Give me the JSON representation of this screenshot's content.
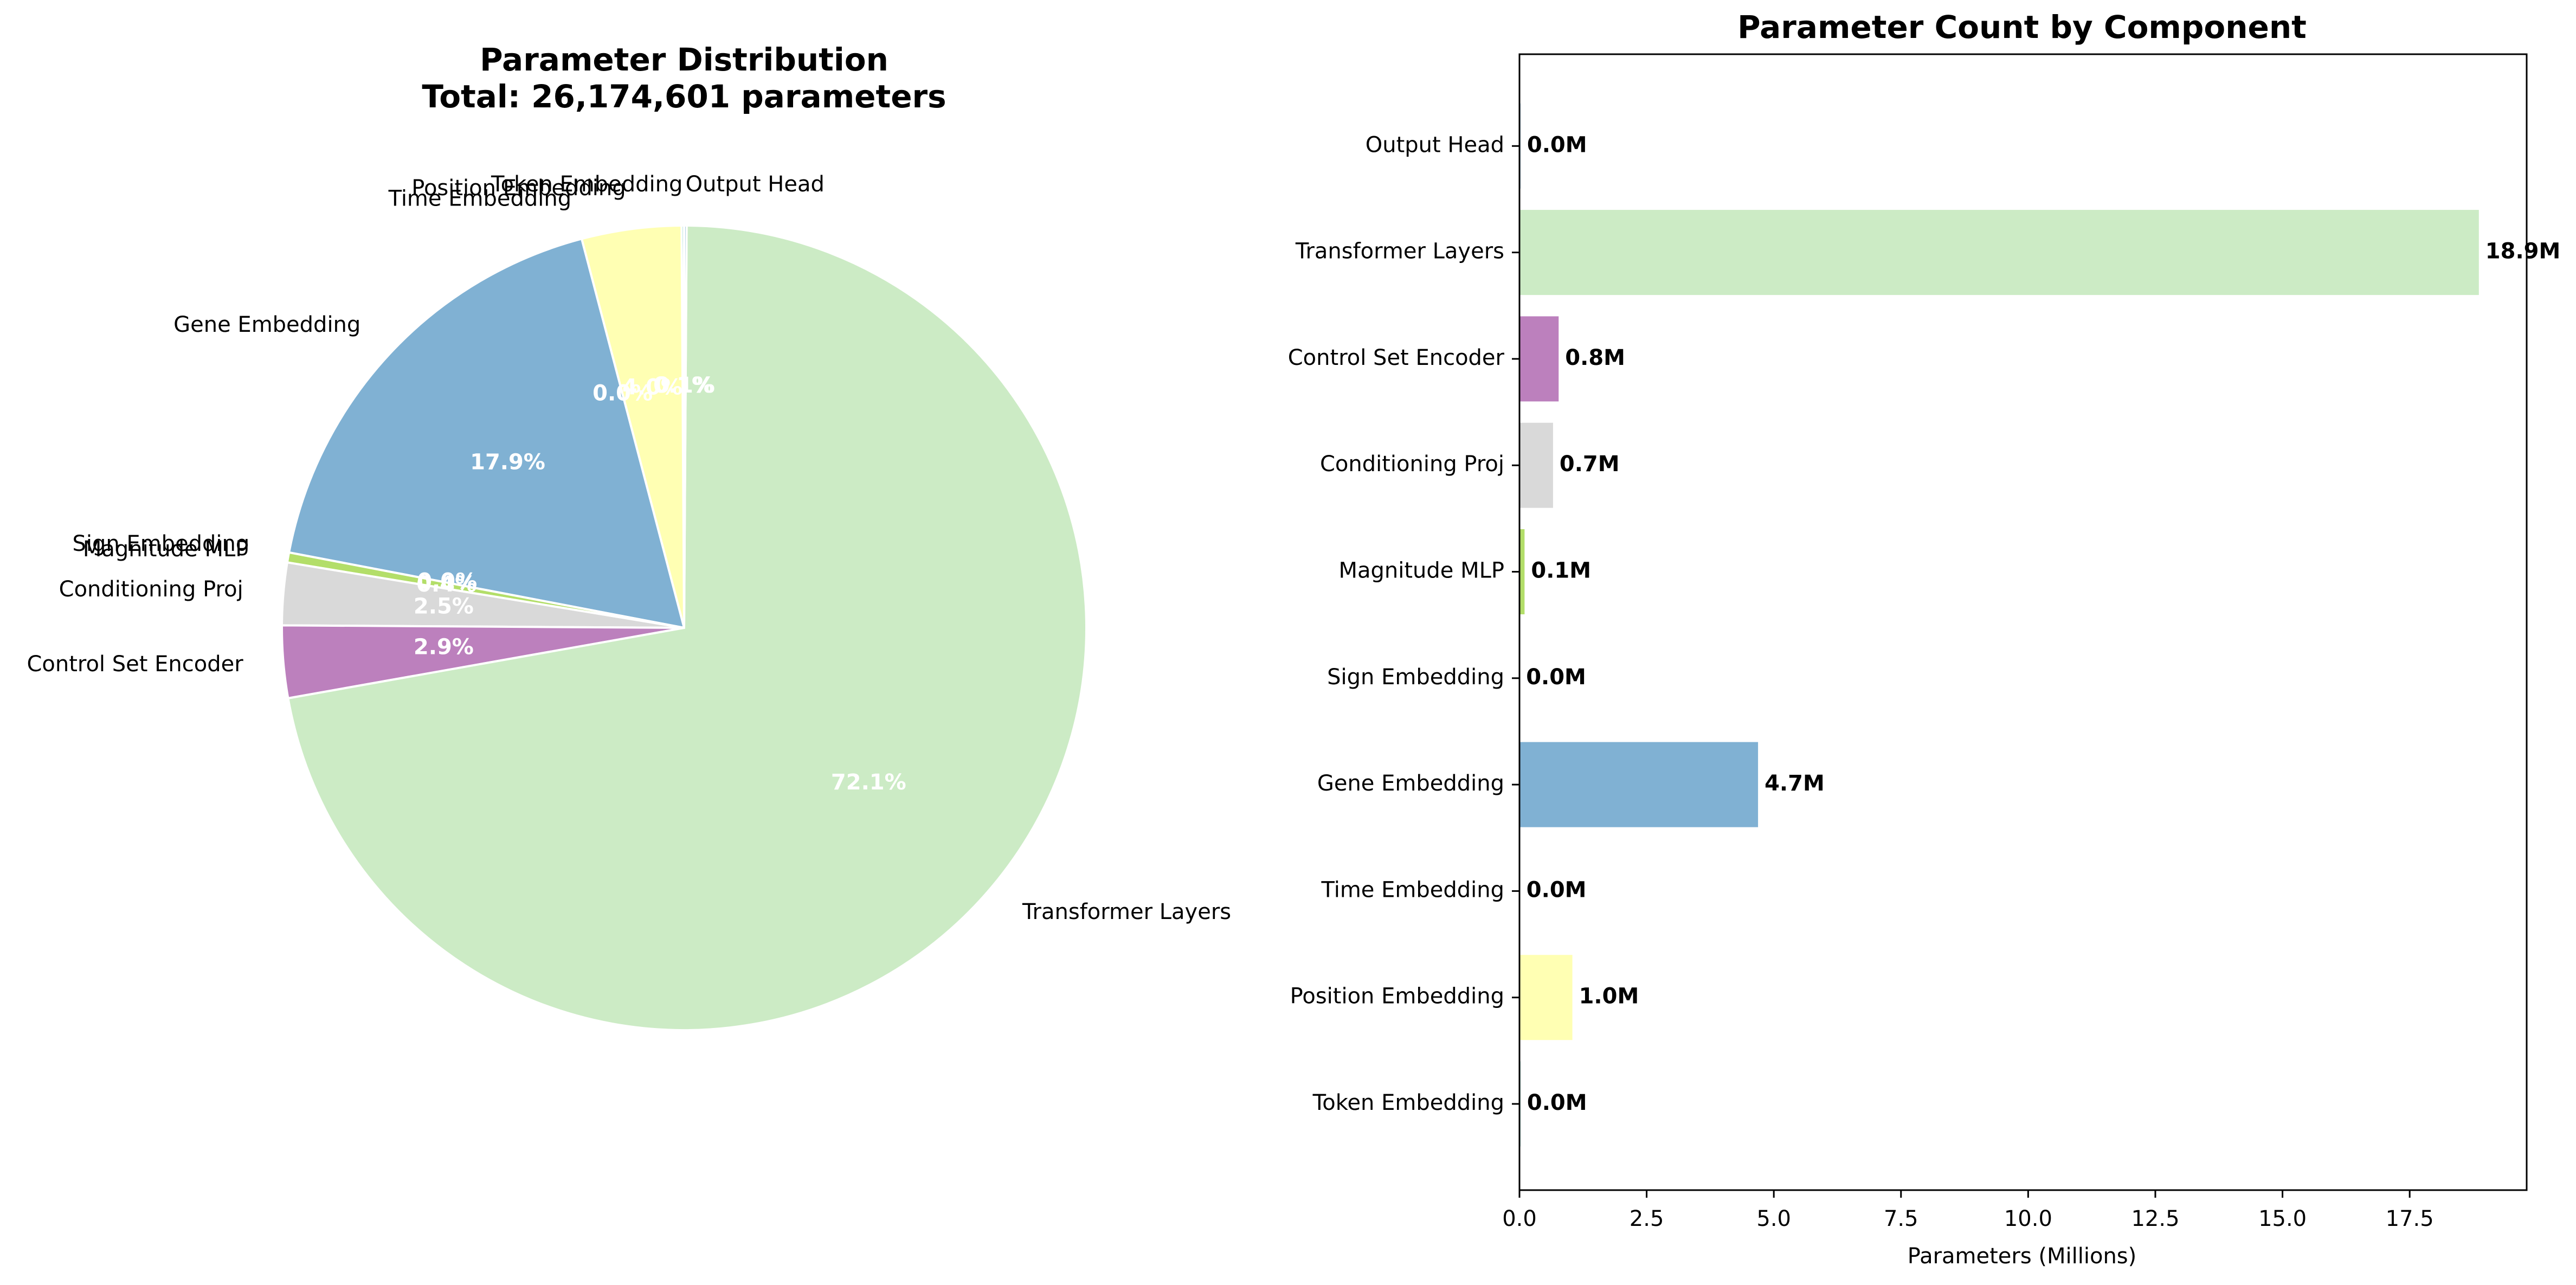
{
  "chart_data": [
    {
      "type": "pie",
      "title": "Parameter Distribution",
      "subtitle": "Total: 26,174,601 parameters",
      "slices": [
        {
          "label": "Token Embedding",
          "percent": 0.1,
          "pct_text": "0.1%",
          "color": "#8dd3c7"
        },
        {
          "label": "Position Embedding",
          "percent": 4.0,
          "pct_text": "4.0%",
          "color": "#ffffb3"
        },
        {
          "label": "Time Embedding",
          "percent": 0.0,
          "pct_text": "0.0%",
          "color": "#bebada"
        },
        {
          "label": "Gene Embedding",
          "percent": 17.9,
          "pct_text": "17.9%",
          "color": "#80b1d3"
        },
        {
          "label": "Sign Embedding",
          "percent": 0.0,
          "pct_text": "0.0%",
          "color": "#fdb462"
        },
        {
          "label": "Magnitude MLP",
          "percent": 0.4,
          "pct_text": "0.4%",
          "color": "#b3de69"
        },
        {
          "label": "Conditioning Proj",
          "percent": 2.5,
          "pct_text": "2.5%",
          "color": "#d9d9d9"
        },
        {
          "label": "Control Set Encoder",
          "percent": 2.9,
          "pct_text": "2.9%",
          "color": "#bc80bd"
        },
        {
          "label": "Transformer Layers",
          "percent": 72.1,
          "pct_text": "72.1%",
          "color": "#ccebc5"
        },
        {
          "label": "Output Head",
          "percent": 0.1,
          "pct_text": "0.1%",
          "color": "#80b1d3"
        }
      ]
    },
    {
      "type": "bar",
      "orientation": "horizontal",
      "title": "Parameter Count by Component",
      "xlabel": "Parameters (Millions)",
      "ylabel": "",
      "xlim": [
        0,
        19.8
      ],
      "xticks": [
        0.0,
        2.5,
        5.0,
        7.5,
        10.0,
        12.5,
        15.0,
        17.5
      ],
      "xtick_labels": [
        "0.0",
        "2.5",
        "5.0",
        "7.5",
        "10.0",
        "12.5",
        "15.0",
        "17.5"
      ],
      "bars": [
        {
          "label": "Token Embedding",
          "value": 0.02,
          "value_label": "0.0M",
          "color": "#8dd3c7"
        },
        {
          "label": "Position Embedding",
          "value": 1.04,
          "value_label": "1.0M",
          "color": "#ffffb3"
        },
        {
          "label": "Time Embedding",
          "value": 0.008,
          "value_label": "0.0M",
          "color": "#bebada"
        },
        {
          "label": "Gene Embedding",
          "value": 4.69,
          "value_label": "4.7M",
          "color": "#80b1d3"
        },
        {
          "label": "Sign Embedding",
          "value": 0.002,
          "value_label": "0.0M",
          "color": "#fdb462"
        },
        {
          "label": "Magnitude MLP",
          "value": 0.1,
          "value_label": "0.1M",
          "color": "#b3de69"
        },
        {
          "label": "Conditioning Proj",
          "value": 0.66,
          "value_label": "0.7M",
          "color": "#d9d9d9"
        },
        {
          "label": "Control Set Encoder",
          "value": 0.77,
          "value_label": "0.8M",
          "color": "#bc80bd"
        },
        {
          "label": "Transformer Layers",
          "value": 18.86,
          "value_label": "18.9M",
          "color": "#ccebc5"
        },
        {
          "label": "Output Head",
          "value": 0.02,
          "value_label": "0.0M",
          "color": "#80b1d3"
        }
      ]
    }
  ]
}
